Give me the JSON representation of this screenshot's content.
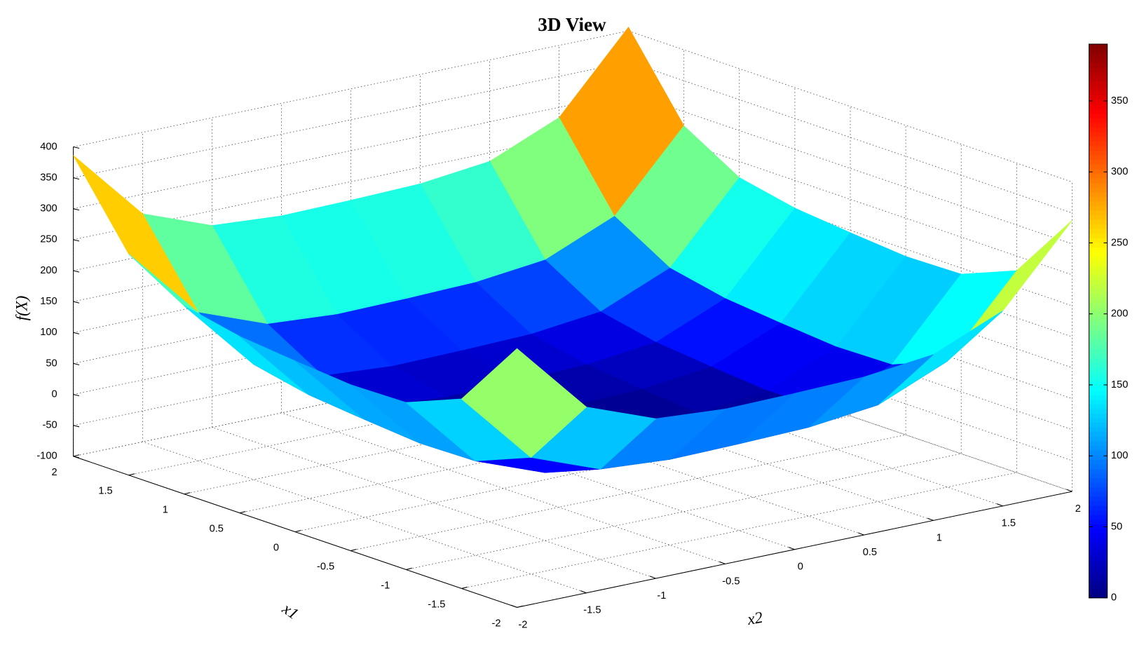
{
  "chart_data": {
    "type": "surface",
    "title": "3D View",
    "xlabel": "x1",
    "ylabel": "x2",
    "zlabel": "f(X)",
    "x": [
      -2,
      -1.5,
      -1,
      -0.5,
      0,
      0.5,
      1,
      1.5,
      2
    ],
    "y": [
      -2,
      -1.5,
      -1,
      -0.5,
      0,
      0.5,
      1,
      1.5,
      2
    ],
    "z": [
      [
        318,
        200.2,
        158,
        150.2,
        152,
        155.2,
        168,
        215.2,
        338
      ],
      [
        206.2,
        88.4,
        46.2,
        38.4,
        40.2,
        43.4,
        56.2,
        103.4,
        226.2
      ],
      [
        170,
        52.2,
        10,
        2.2,
        4,
        7.2,
        20,
        67.2,
        190
      ],
      [
        168.2,
        50.4,
        8.2,
        0.4,
        2.2,
        5.4,
        18.2,
        65.4,
        188.2
      ],
      [
        176,
        58.2,
        16,
        8.2,
        10,
        13.2,
        26,
        73.2,
        196
      ],
      [
        185.2,
        67.4,
        25.2,
        17.4,
        19.2,
        22.4,
        35.2,
        82.4,
        205.2
      ],
      [
        204,
        86.2,
        44,
        36.2,
        38,
        41.2,
        54,
        101.2,
        224
      ],
      [
        257.2,
        139.4,
        97.2,
        89.4,
        91.2,
        94.4,
        107.2,
        154.4,
        277.2
      ],
      [
        386,
        268.2,
        226,
        218.2,
        220,
        223.2,
        236,
        283.2,
        406
      ]
    ],
    "xlim": [
      -2,
      2
    ],
    "xticks": [
      -2,
      -1.5,
      -1,
      -0.5,
      0,
      0.5,
      1,
      1.5
    ],
    "ylim": [
      -2,
      2
    ],
    "yticks": [
      -2,
      -1.5,
      -1,
      -0.5,
      0,
      0.5,
      1,
      1.5
    ],
    "zlim": [
      -100,
      400
    ],
    "zticks": [
      -100,
      -50,
      0,
      50,
      100,
      150,
      200,
      250,
      300,
      350,
      400
    ],
    "x_extra_tick": 2,
    "y_extra_tick": 2,
    "colormap": "jet",
    "grid": true,
    "colorbar": {
      "clim": [
        0,
        390
      ],
      "ticks": [
        0,
        50,
        100,
        150,
        200,
        250,
        300,
        350
      ]
    }
  }
}
